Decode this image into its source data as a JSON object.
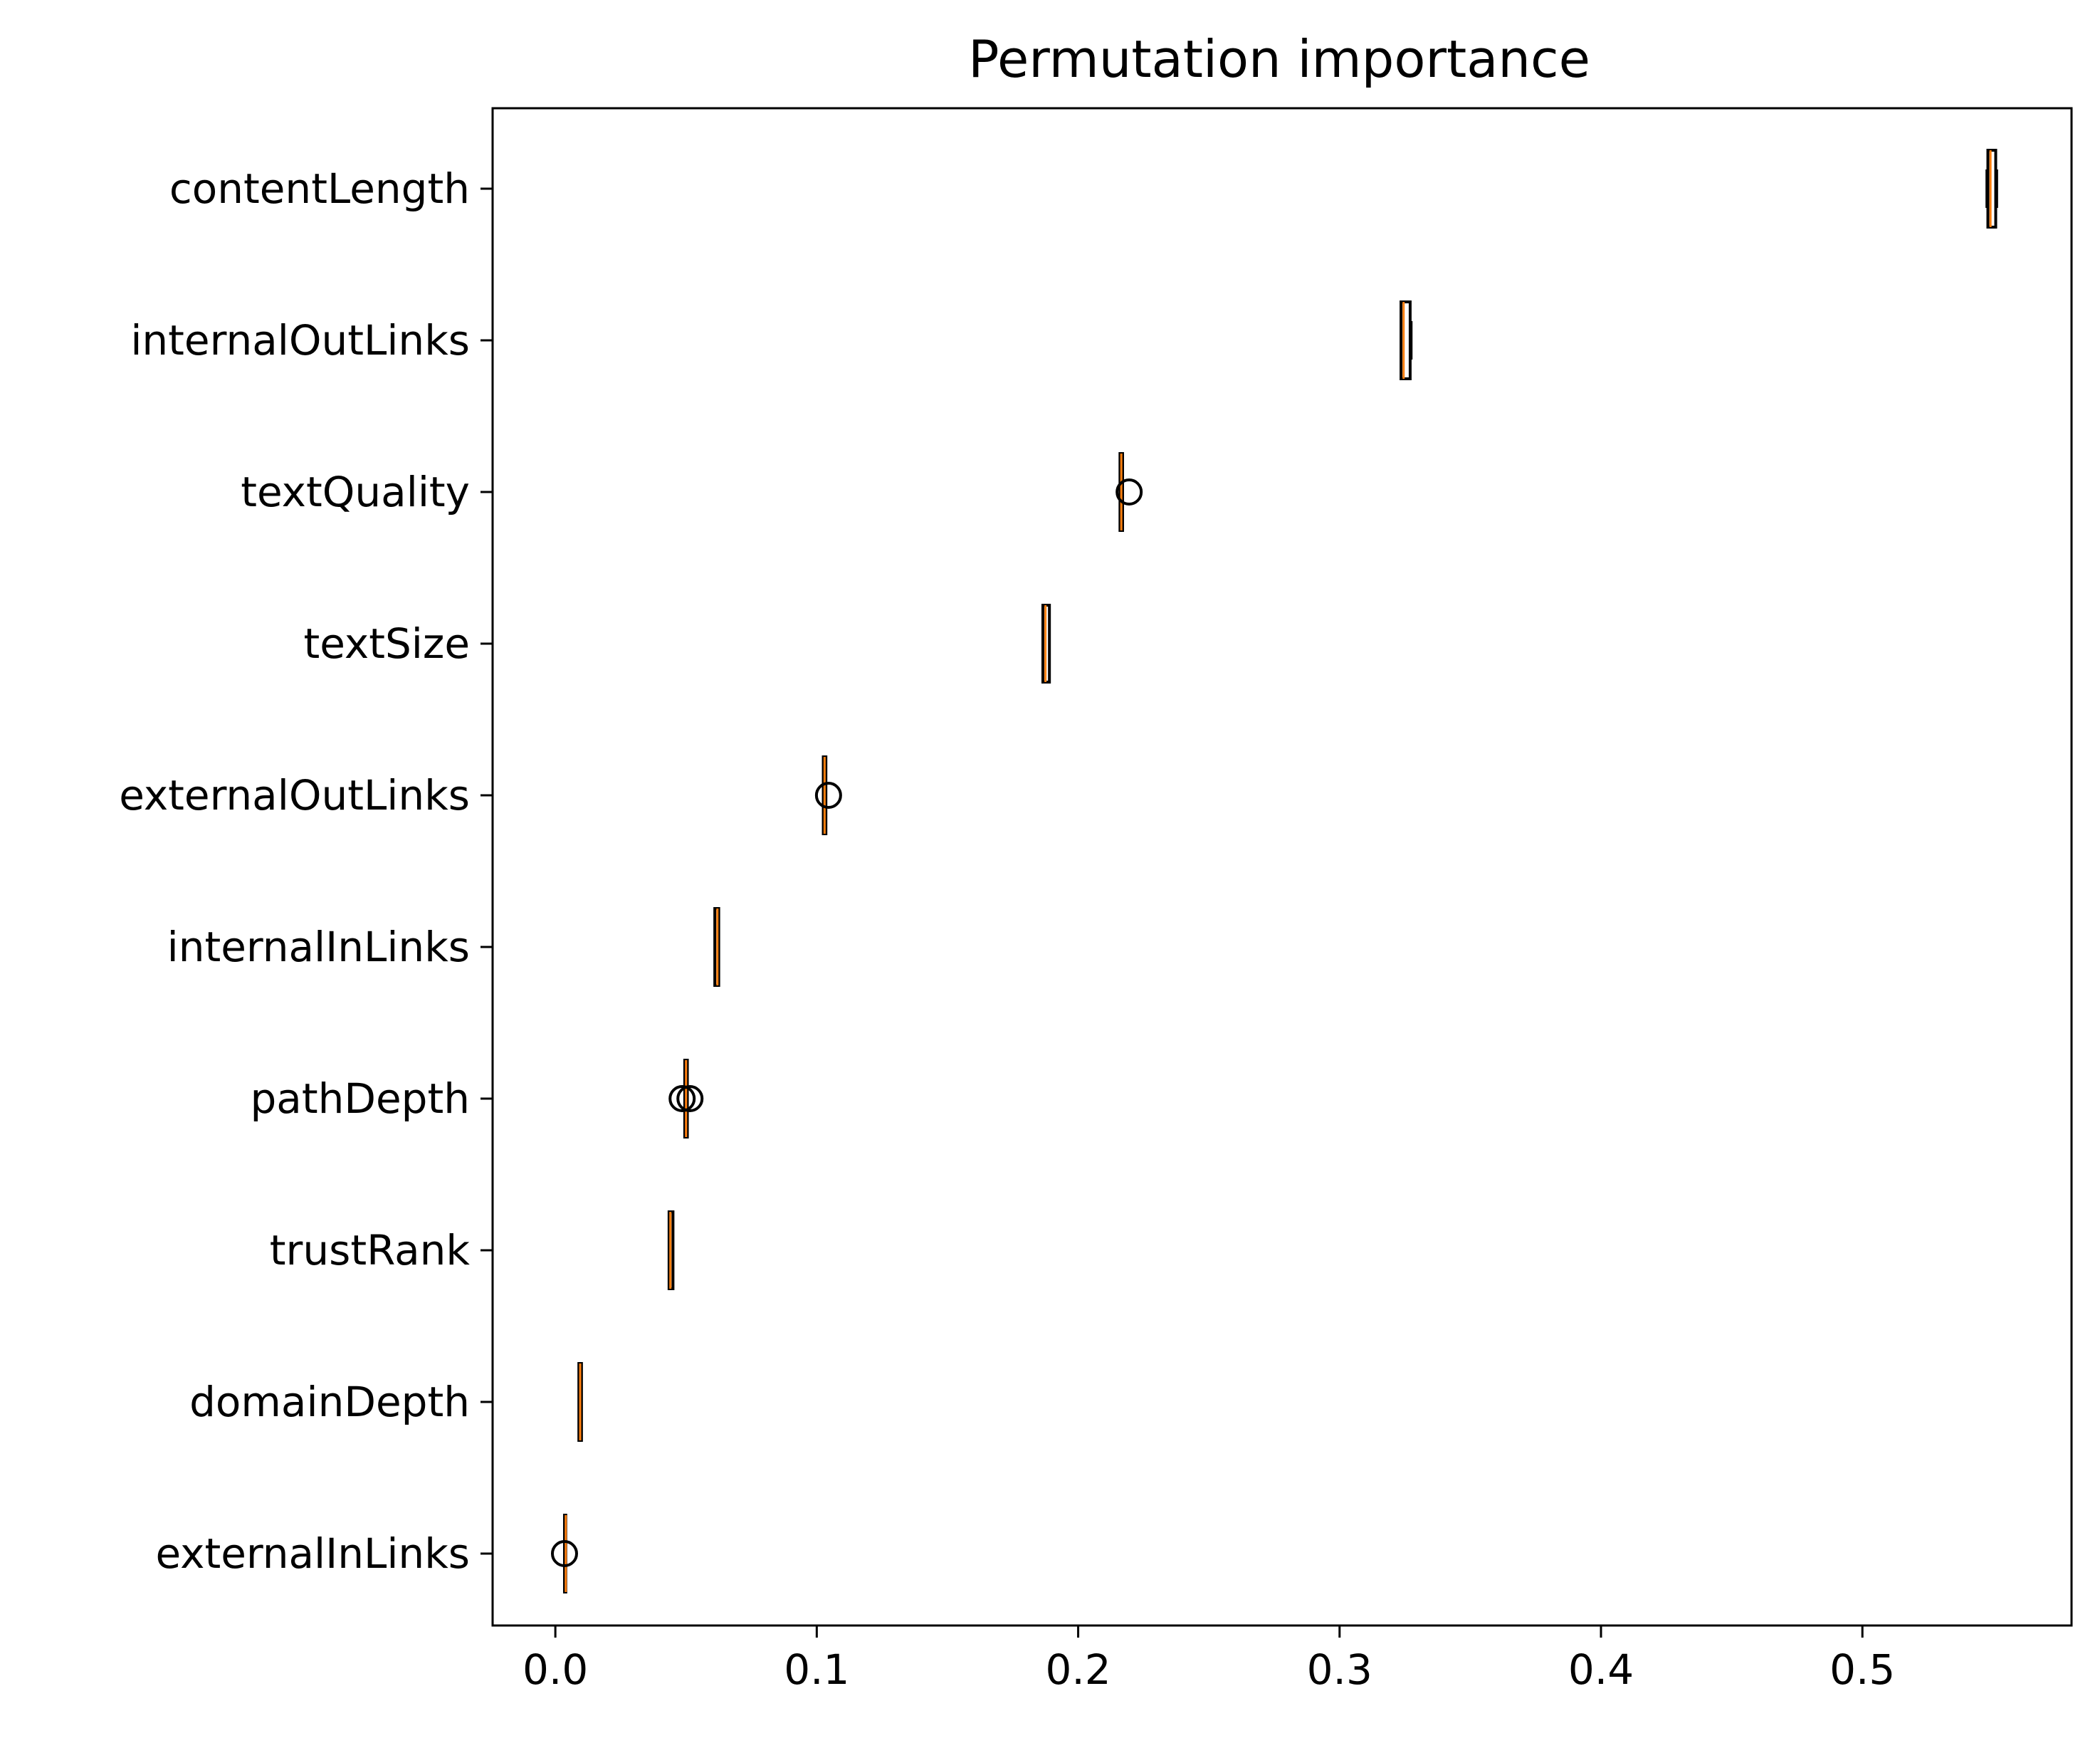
{
  "chart_data": {
    "type": "boxplot",
    "orientation": "horizontal",
    "title": "Permutation importance",
    "xlabel": "",
    "ylabel": "",
    "xlim": [
      -0.024,
      0.58
    ],
    "xticks": [
      0.0,
      0.1,
      0.2,
      0.3,
      0.4,
      0.5
    ],
    "xtick_labels": [
      "0.0",
      "0.1",
      "0.2",
      "0.3",
      "0.4",
      "0.5"
    ],
    "grid": false,
    "colors": {
      "box": "#000000",
      "median": "#ff7f0e",
      "flier": "#000000"
    },
    "categories": [
      "contentLength",
      "internalOutLinks",
      "textQuality",
      "textSize",
      "externalOutLinks",
      "internalInLinks",
      "pathDepth",
      "trustRank",
      "domainDepth",
      "externalInLinks"
    ],
    "boxes": [
      {
        "label": "contentLength",
        "whisker_low": 0.5475,
        "q1": 0.548,
        "median": 0.549,
        "q3": 0.551,
        "whisker_high": 0.5515,
        "fliers": []
      },
      {
        "label": "internalOutLinks",
        "whisker_low": 0.3235,
        "q1": 0.3235,
        "median": 0.3245,
        "q3": 0.327,
        "whisker_high": 0.3275,
        "fliers": []
      },
      {
        "label": "textQuality",
        "whisker_low": 0.216,
        "q1": 0.216,
        "median": 0.2165,
        "q3": 0.217,
        "whisker_high": 0.217,
        "fliers": [
          0.2195
        ]
      },
      {
        "label": "textSize",
        "whisker_low": 0.1865,
        "q1": 0.1865,
        "median": 0.1875,
        "q3": 0.189,
        "whisker_high": 0.189,
        "fliers": []
      },
      {
        "label": "externalOutLinks",
        "whisker_low": 0.1025,
        "q1": 0.1025,
        "median": 0.103,
        "q3": 0.1035,
        "whisker_high": 0.1035,
        "fliers": [
          0.1045
        ]
      },
      {
        "label": "internalInLinks",
        "whisker_low": 0.061,
        "q1": 0.061,
        "median": 0.062,
        "q3": 0.0625,
        "whisker_high": 0.0625,
        "fliers": []
      },
      {
        "label": "pathDepth",
        "whisker_low": 0.0495,
        "q1": 0.0495,
        "median": 0.05,
        "q3": 0.0505,
        "whisker_high": 0.0505,
        "fliers": [
          0.0485,
          0.0515
        ]
      },
      {
        "label": "trustRank",
        "whisker_low": 0.0435,
        "q1": 0.0435,
        "median": 0.044,
        "q3": 0.045,
        "whisker_high": 0.045,
        "fliers": []
      },
      {
        "label": "domainDepth",
        "whisker_low": 0.009,
        "q1": 0.009,
        "median": 0.0095,
        "q3": 0.01,
        "whisker_high": 0.01,
        "fliers": []
      },
      {
        "label": "externalInLinks",
        "whisker_low": 0.0035,
        "q1": 0.0035,
        "median": 0.004,
        "q3": 0.004,
        "whisker_high": 0.004,
        "fliers": [
          0.0035
        ]
      }
    ]
  }
}
